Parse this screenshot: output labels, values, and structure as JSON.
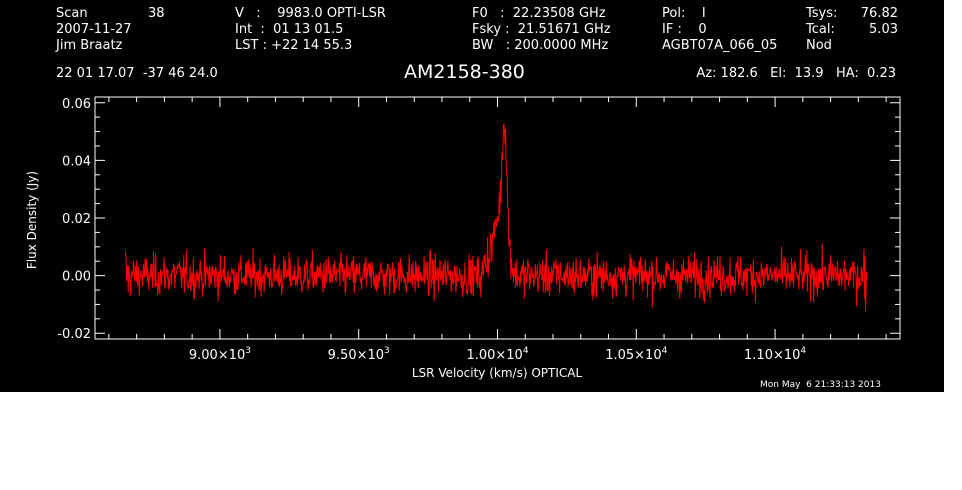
{
  "header": {
    "col1": {
      "l1a": "Scan",
      "l1b": "38",
      "l2": "2007-11-27",
      "l3": "Jim Braatz"
    },
    "col2": {
      "l1": "V   :    9983.0 OPTI-LSR",
      "l2": "Int  :  01 13 01.5",
      "l3": "LST : +22 14 55.3"
    },
    "col3": {
      "l1": "F0   :  22.23508 GHz",
      "l2": "Fsky :  21.51671 GHz",
      "l3": "BW   : 200.0000 MHz"
    },
    "col4": {
      "l1": "Pol:    I",
      "l2": "IF :    0",
      "l3": "AGBT07A_066_05"
    },
    "col5": {
      "l1a": "Tsys:",
      "l1b": "76.82",
      "l2a": "Tcal:",
      "l2b": "5.03",
      "l3a": "Nod",
      "l3b": ""
    },
    "coords": "22 01 17.07  -37 46 24.0",
    "source": "AM2158-380",
    "pointing": "Az: 182.6   El:  13.9   HA:  0.23"
  },
  "footer": {
    "timestamp": "Mon May  6 21:33:13 2013"
  },
  "colors": {
    "background": "#000000",
    "foreground": "#ffffff",
    "spectrum": "#ff0000"
  },
  "chart_data": {
    "type": "line",
    "title": "",
    "xlabel": "LSR Velocity (km/s) OPTICAL",
    "ylabel": "Flux Density (Jy)",
    "xlim": [
      8550,
      11450
    ],
    "ylim": [
      -0.022,
      0.062
    ],
    "xticks": [
      {
        "value": 9000,
        "mantissa": "9.00",
        "exp": "3"
      },
      {
        "value": 9500,
        "mantissa": "9.50",
        "exp": "3"
      },
      {
        "value": 10000,
        "mantissa": "1.00",
        "exp": "4"
      },
      {
        "value": 10500,
        "mantissa": "1.05",
        "exp": "4"
      },
      {
        "value": 11000,
        "mantissa": "1.10",
        "exp": "4"
      }
    ],
    "yticks": [
      {
        "value": -0.02,
        "label": "-0.02"
      },
      {
        "value": 0.0,
        "label": "0.00"
      },
      {
        "value": 0.02,
        "label": "0.02"
      },
      {
        "value": 0.04,
        "label": "0.04"
      },
      {
        "value": 0.06,
        "label": "0.06"
      }
    ],
    "series": [
      {
        "color": "#ff0000",
        "x_range": [
          8660,
          11330
        ],
        "baseline": 0.0,
        "noise_rms": 0.0035,
        "x": [
          9950,
          9970,
          9985,
          9995,
          10005,
          10012,
          10018,
          10022,
          10026,
          10030,
          10034,
          10038,
          10045,
          10055,
          10065
        ],
        "y": [
          0.004,
          0.008,
          0.013,
          0.018,
          0.022,
          0.03,
          0.045,
          0.052,
          0.054,
          0.048,
          0.035,
          0.02,
          0.008,
          0.003,
          0.0
        ]
      }
    ]
  }
}
